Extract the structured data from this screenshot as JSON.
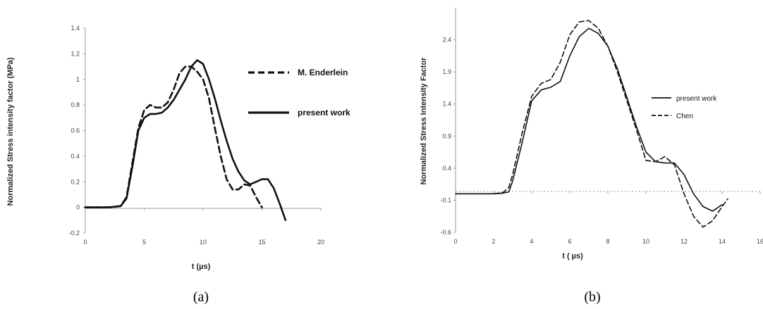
{
  "chart_data": [
    {
      "id": "a",
      "type": "line",
      "panel_label": "(a)",
      "xlabel": "t (µs)",
      "ylabel": "Normalized Stress intensity factor (MPa)",
      "xlim": [
        0,
        20
      ],
      "ylim": [
        -0.2,
        1.4
      ],
      "xticks": [
        0,
        5,
        10,
        15,
        20
      ],
      "yticks": [
        -0.2,
        0,
        0.2,
        0.4,
        0.6,
        0.8,
        1,
        1.2,
        1.4
      ],
      "legend_position": "right",
      "series": [
        {
          "name": "M. Enderlein",
          "dash": "dashed",
          "x": [
            0,
            1,
            2,
            3,
            3.5,
            4,
            4.5,
            5,
            5.5,
            6,
            6.5,
            7,
            7.5,
            8,
            8.5,
            9,
            9.5,
            10,
            10.5,
            11,
            11.5,
            12,
            12.5,
            13,
            13.5,
            14,
            14.5,
            15
          ],
          "y": [
            0,
            0,
            0,
            0.01,
            0.08,
            0.35,
            0.62,
            0.76,
            0.8,
            0.78,
            0.78,
            0.82,
            0.92,
            1.05,
            1.1,
            1.1,
            1.06,
            1.0,
            0.85,
            0.62,
            0.4,
            0.22,
            0.14,
            0.14,
            0.18,
            0.17,
            0.08,
            0.0
          ]
        },
        {
          "name": "present work",
          "dash": "solid",
          "x": [
            0,
            1,
            2,
            3,
            3.5,
            4,
            4.5,
            5,
            5.5,
            6,
            6.5,
            7,
            7.5,
            8,
            8.5,
            9,
            9.5,
            10,
            10.5,
            11,
            11.5,
            12,
            12.5,
            13,
            13.5,
            14,
            14.5,
            15,
            15.5,
            16,
            16.5,
            17
          ],
          "y": [
            0,
            0,
            0,
            0.01,
            0.07,
            0.32,
            0.6,
            0.7,
            0.73,
            0.73,
            0.74,
            0.78,
            0.84,
            0.92,
            1.0,
            1.1,
            1.15,
            1.12,
            1.0,
            0.85,
            0.68,
            0.52,
            0.38,
            0.28,
            0.21,
            0.18,
            0.2,
            0.22,
            0.22,
            0.15,
            0.03,
            -0.1
          ]
        }
      ]
    },
    {
      "id": "b",
      "type": "line",
      "panel_label": "(b)",
      "xlabel": "t  ( µs)",
      "ylabel": "Normalized Stress Intensity Factor",
      "xlim": [
        0,
        16
      ],
      "ylim": [
        -0.6,
        2.9
      ],
      "xticks": [
        0,
        2,
        4,
        6,
        8,
        10,
        12,
        14,
        16
      ],
      "xtick_labels": [
        "0",
        "2",
        "4",
        "6",
        "8",
        "10",
        "12",
        "14",
        "16"
      ],
      "yticks": [
        -0.6,
        -0.1,
        0.4,
        0.9,
        1.4,
        1.9,
        2.4
      ],
      "legend_position": "right",
      "series": [
        {
          "name": "present work",
          "dash": "solid",
          "x": [
            0,
            1,
            2,
            2.5,
            2.8,
            3,
            3.5,
            4,
            4.5,
            5,
            5.5,
            6,
            6.5,
            7,
            7.5,
            8,
            8.5,
            9,
            9.5,
            10,
            10.5,
            11,
            11.5,
            12,
            12.5,
            13,
            13.5,
            14
          ],
          "y": [
            0,
            0,
            0,
            0.01,
            0.03,
            0.2,
            0.8,
            1.45,
            1.62,
            1.66,
            1.75,
            2.15,
            2.45,
            2.58,
            2.5,
            2.3,
            1.95,
            1.5,
            1.05,
            0.65,
            0.5,
            0.48,
            0.48,
            0.3,
            0.0,
            -0.2,
            -0.27,
            -0.17
          ]
        },
        {
          "name": "Chen",
          "dash": "dashed",
          "x": [
            0,
            1,
            2,
            2.5,
            2.8,
            3,
            3.5,
            4,
            4.5,
            5,
            5.5,
            6,
            6.5,
            7,
            7.5,
            8,
            8.5,
            9,
            9.5,
            10,
            10.5,
            11,
            11.5,
            12,
            12.5,
            13,
            13.5,
            14,
            14.3
          ],
          "y": [
            0,
            0,
            0,
            0.02,
            0.1,
            0.3,
            0.95,
            1.52,
            1.72,
            1.78,
            2.05,
            2.48,
            2.68,
            2.7,
            2.58,
            2.3,
            1.9,
            1.45,
            1.0,
            0.52,
            0.5,
            0.58,
            0.45,
            0.0,
            -0.35,
            -0.52,
            -0.42,
            -0.2,
            -0.08
          ]
        }
      ]
    }
  ]
}
